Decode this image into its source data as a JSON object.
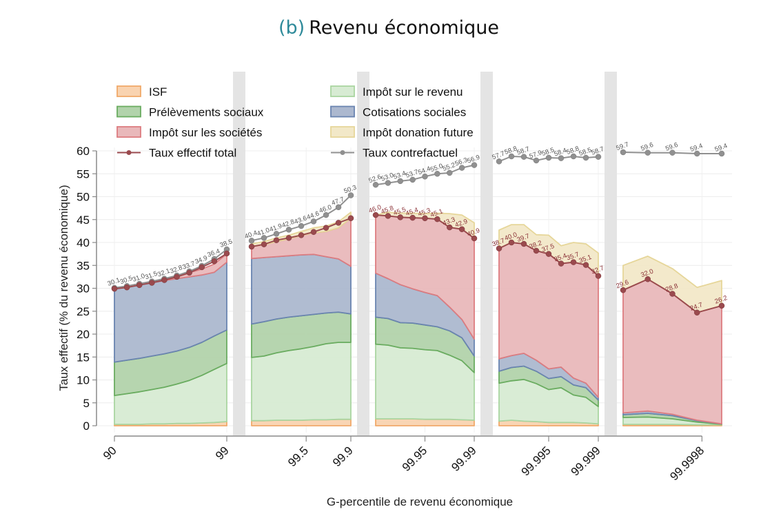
{
  "chart_data": {
    "type": "area",
    "subtype": "stacked-area-segmented",
    "title_tag": "(b)",
    "title": "Revenu économique",
    "xlabel": "G-percentile de revenu économique",
    "ylabel": "Taux effectif (% du revenu économique)",
    "ylim": [
      0,
      60
    ],
    "yticks": [
      0,
      5,
      10,
      15,
      20,
      25,
      30,
      35,
      40,
      45,
      50,
      55,
      60
    ],
    "grid": true,
    "legend_position": "top-left-inside",
    "xticks": [
      {
        "label": "90",
        "segment": 0,
        "pos": 0
      },
      {
        "label": "99",
        "segment": 0,
        "pos": 1
      },
      {
        "label": "99.5",
        "segment": 1,
        "pos": 0.55
      },
      {
        "label": "99.9",
        "segment": 1,
        "pos": 1
      },
      {
        "label": "99.95",
        "segment": 2,
        "pos": 0.5
      },
      {
        "label": "99.99",
        "segment": 2,
        "pos": 1
      },
      {
        "label": "99.995",
        "segment": 3,
        "pos": 0.5
      },
      {
        "label": "99.999",
        "segment": 3,
        "pos": 1
      },
      {
        "label": "99.9998",
        "segment": 4,
        "pos": 0.8
      }
    ],
    "legend": [
      {
        "key": "isf",
        "label": "ISF",
        "kind": "area"
      },
      {
        "key": "ir",
        "label": "Impôt sur le revenu",
        "kind": "area"
      },
      {
        "key": "ps",
        "label": "Prélèvements sociaux",
        "kind": "area"
      },
      {
        "key": "cs",
        "label": "Cotisations sociales",
        "kind": "area"
      },
      {
        "key": "is",
        "label": "Impôt sur les sociétés",
        "kind": "area"
      },
      {
        "key": "don",
        "label": "Impôt donation future",
        "kind": "area"
      },
      {
        "key": "total",
        "label": "Taux effectif total",
        "kind": "line"
      },
      {
        "key": "cf",
        "label": "Taux contrefactuel",
        "kind": "line"
      }
    ],
    "colors": {
      "isf": {
        "fill": "#f9d3b0",
        "stroke": "#f0a96a"
      },
      "ir": {
        "fill": "#d7ebd3",
        "stroke": "#a9d5a0"
      },
      "ps": {
        "fill": "#b2d3ab",
        "stroke": "#6aac60"
      },
      "cs": {
        "fill": "#acb8cf",
        "stroke": "#6a84b0"
      },
      "is": {
        "fill": "#e9b8ba",
        "stroke": "#dc7c80"
      },
      "don": {
        "fill": "#f2e8c8",
        "stroke": "#e6d699"
      },
      "total": "#9a4a4e",
      "cf": "#909090",
      "label_total": "#8a3036",
      "label_cf": "#555555"
    },
    "segments": [
      {
        "isf": [
          0.3,
          0.3,
          0.3,
          0.4,
          0.4,
          0.5,
          0.5,
          0.6,
          0.7,
          0.9
        ],
        "ir": [
          6.3,
          6.7,
          7.1,
          7.5,
          8.0,
          8.6,
          9.4,
          10.4,
          11.6,
          12.7
        ],
        "ps": [
          7.3,
          7.3,
          7.3,
          7.3,
          7.3,
          7.2,
          7.2,
          7.2,
          7.3,
          7.3
        ],
        "cs": [
          15.9,
          16.0,
          16.1,
          16.0,
          16.0,
          15.8,
          15.4,
          14.7,
          13.9,
          14.8
        ],
        "is": [
          0.2,
          0.2,
          0.2,
          0.3,
          0.4,
          0.6,
          0.9,
          1.3,
          1.8,
          1.8
        ],
        "don": [
          0.0,
          0.0,
          0.0,
          0.0,
          0.0,
          0.0,
          0.0,
          0.0,
          0.0,
          0.0
        ],
        "total": [
          29.9,
          30.2,
          30.7,
          31.2,
          31.8,
          32.5,
          33.4,
          34.6,
          35.9,
          37.6
        ],
        "cf": [
          30.1,
          30.5,
          31.0,
          31.5,
          32.1,
          32.8,
          33.7,
          34.9,
          36.4,
          38.5
        ],
        "cf_labels": [
          "30.1",
          "30.5",
          "31.0",
          "31.5",
          "32.1",
          "32.8",
          "33.7",
          "34.9",
          "36.4",
          "38.5"
        ],
        "total_labels": []
      },
      {
        "isf": [
          1.1,
          1.1,
          1.2,
          1.2,
          1.2,
          1.3,
          1.3,
          1.4,
          1.4
        ],
        "ir": [
          13.8,
          14.1,
          14.7,
          15.2,
          15.6,
          16.0,
          16.6,
          16.8,
          16.8
        ],
        "ps": [
          7.3,
          7.5,
          7.4,
          7.3,
          7.2,
          7.0,
          6.7,
          6.6,
          6.2
        ],
        "cs": [
          14.3,
          14.0,
          13.6,
          13.4,
          13.3,
          13.1,
          12.3,
          11.6,
          10.4
        ],
        "is": [
          2.6,
          2.8,
          3.3,
          3.7,
          4.2,
          4.7,
          5.5,
          6.8,
          10.5
        ],
        "don": [
          0.6,
          0.7,
          0.8,
          0.8,
          0.9,
          1.1,
          1.2,
          1.3,
          1.3
        ],
        "total": [
          39.1,
          39.6,
          40.5,
          41.0,
          41.6,
          42.3,
          43.2,
          44.3,
          45.3
        ],
        "cf": [
          40.4,
          41.0,
          41.9,
          42.8,
          43.6,
          44.6,
          46.0,
          47.7,
          50.3
        ],
        "cf_labels": [
          "40.4",
          "41.0",
          "41.9",
          "42.8",
          "43.6",
          "44.6",
          "46.0",
          "47.7",
          "50.3"
        ],
        "total_labels": []
      },
      {
        "isf": [
          1.5,
          1.5,
          1.5,
          1.5,
          1.4,
          1.4,
          1.4,
          1.3,
          1.2
        ],
        "ir": [
          16.3,
          16.1,
          15.5,
          15.4,
          15.2,
          15.0,
          14.0,
          12.9,
          10.4
        ],
        "ps": [
          5.9,
          5.8,
          5.5,
          5.5,
          5.4,
          5.2,
          5.3,
          5.0,
          3.6
        ],
        "cs": [
          9.6,
          8.7,
          8.3,
          7.5,
          7.1,
          6.8,
          5.2,
          4.0,
          3.7
        ],
        "is": [
          12.7,
          13.7,
          14.7,
          15.5,
          16.2,
          16.7,
          17.4,
          19.7,
          22.0
        ],
        "don": [
          0.0,
          0.8,
          0.9,
          1.0,
          1.0,
          1.3,
          3.0,
          3.1,
          3.4
        ],
        "total": [
          46.0,
          45.8,
          45.5,
          45.4,
          45.3,
          45.1,
          43.3,
          42.9,
          40.9
        ],
        "cf": [
          52.6,
          53.0,
          53.4,
          53.7,
          54.4,
          55.0,
          55.2,
          56.3,
          56.9
        ],
        "cf_labels": [
          "52.6",
          "53.0",
          "53.4",
          "53.7",
          "54.4",
          "55.0",
          "55.2",
          "56.3",
          "56.9"
        ],
        "total_labels": [
          "46.0",
          "45.8",
          "45.5",
          "45.4",
          "45.3",
          "45.1",
          "43.3",
          "42.9",
          "40.9"
        ]
      },
      {
        "isf": [
          1.0,
          1.2,
          1.0,
          0.9,
          0.7,
          0.7,
          0.7,
          0.6,
          0.4
        ],
        "ir": [
          8.3,
          8.6,
          9.1,
          8.3,
          7.2,
          7.6,
          6.0,
          5.6,
          3.8
        ],
        "ps": [
          2.6,
          2.9,
          2.9,
          2.7,
          2.4,
          2.4,
          2.2,
          2.1,
          1.4
        ],
        "cs": [
          2.7,
          2.6,
          2.8,
          2.4,
          2.1,
          2.1,
          1.5,
          1.0,
          0.6
        ],
        "is": [
          24.1,
          24.7,
          23.9,
          23.9,
          25.1,
          22.6,
          25.3,
          25.8,
          26.5
        ],
        "don": [
          4.0,
          3.9,
          4.2,
          3.5,
          4.1,
          3.9,
          4.3,
          4.6,
          5.0
        ],
        "total": [
          38.7,
          40.0,
          39.7,
          38.2,
          37.5,
          35.4,
          35.7,
          35.1,
          32.7
        ],
        "cf": [
          57.7,
          58.8,
          58.7,
          57.9,
          58.5,
          58.4,
          58.8,
          58.5,
          58.7
        ],
        "cf_labels": [
          "57.7",
          "58.8",
          "58.7",
          "57.9",
          "58.5",
          "58.4",
          "58.8",
          "58.5",
          "58.7"
        ],
        "total_labels": [
          "38.7",
          "40.0",
          "39.7",
          "38.2",
          "37.5",
          "35.4",
          "35.7",
          "35.1",
          "32.7"
        ]
      },
      {
        "isf": [
          0.3,
          0.3,
          0.3,
          0.2,
          0.2
        ],
        "ir": [
          1.5,
          1.6,
          1.2,
          0.6,
          0.1
        ],
        "ps": [
          0.6,
          0.8,
          0.7,
          0.3,
          0.1
        ],
        "cs": [
          0.4,
          0.5,
          0.3,
          0.1,
          0.0
        ],
        "is": [
          26.8,
          28.8,
          26.3,
          23.5,
          25.8
        ],
        "don": [
          5.4,
          5.0,
          5.5,
          5.5,
          5.5
        ],
        "total": [
          29.6,
          32.0,
          28.8,
          24.7,
          26.2
        ],
        "cf": [
          59.7,
          59.6,
          59.6,
          59.4,
          59.4
        ],
        "cf_labels": [
          "59.7",
          "59.6",
          "59.6",
          "59.4",
          "59.4"
        ],
        "total_labels": [
          "29.6",
          "32.0",
          "28.8",
          "24.7",
          "26.2"
        ]
      }
    ]
  }
}
